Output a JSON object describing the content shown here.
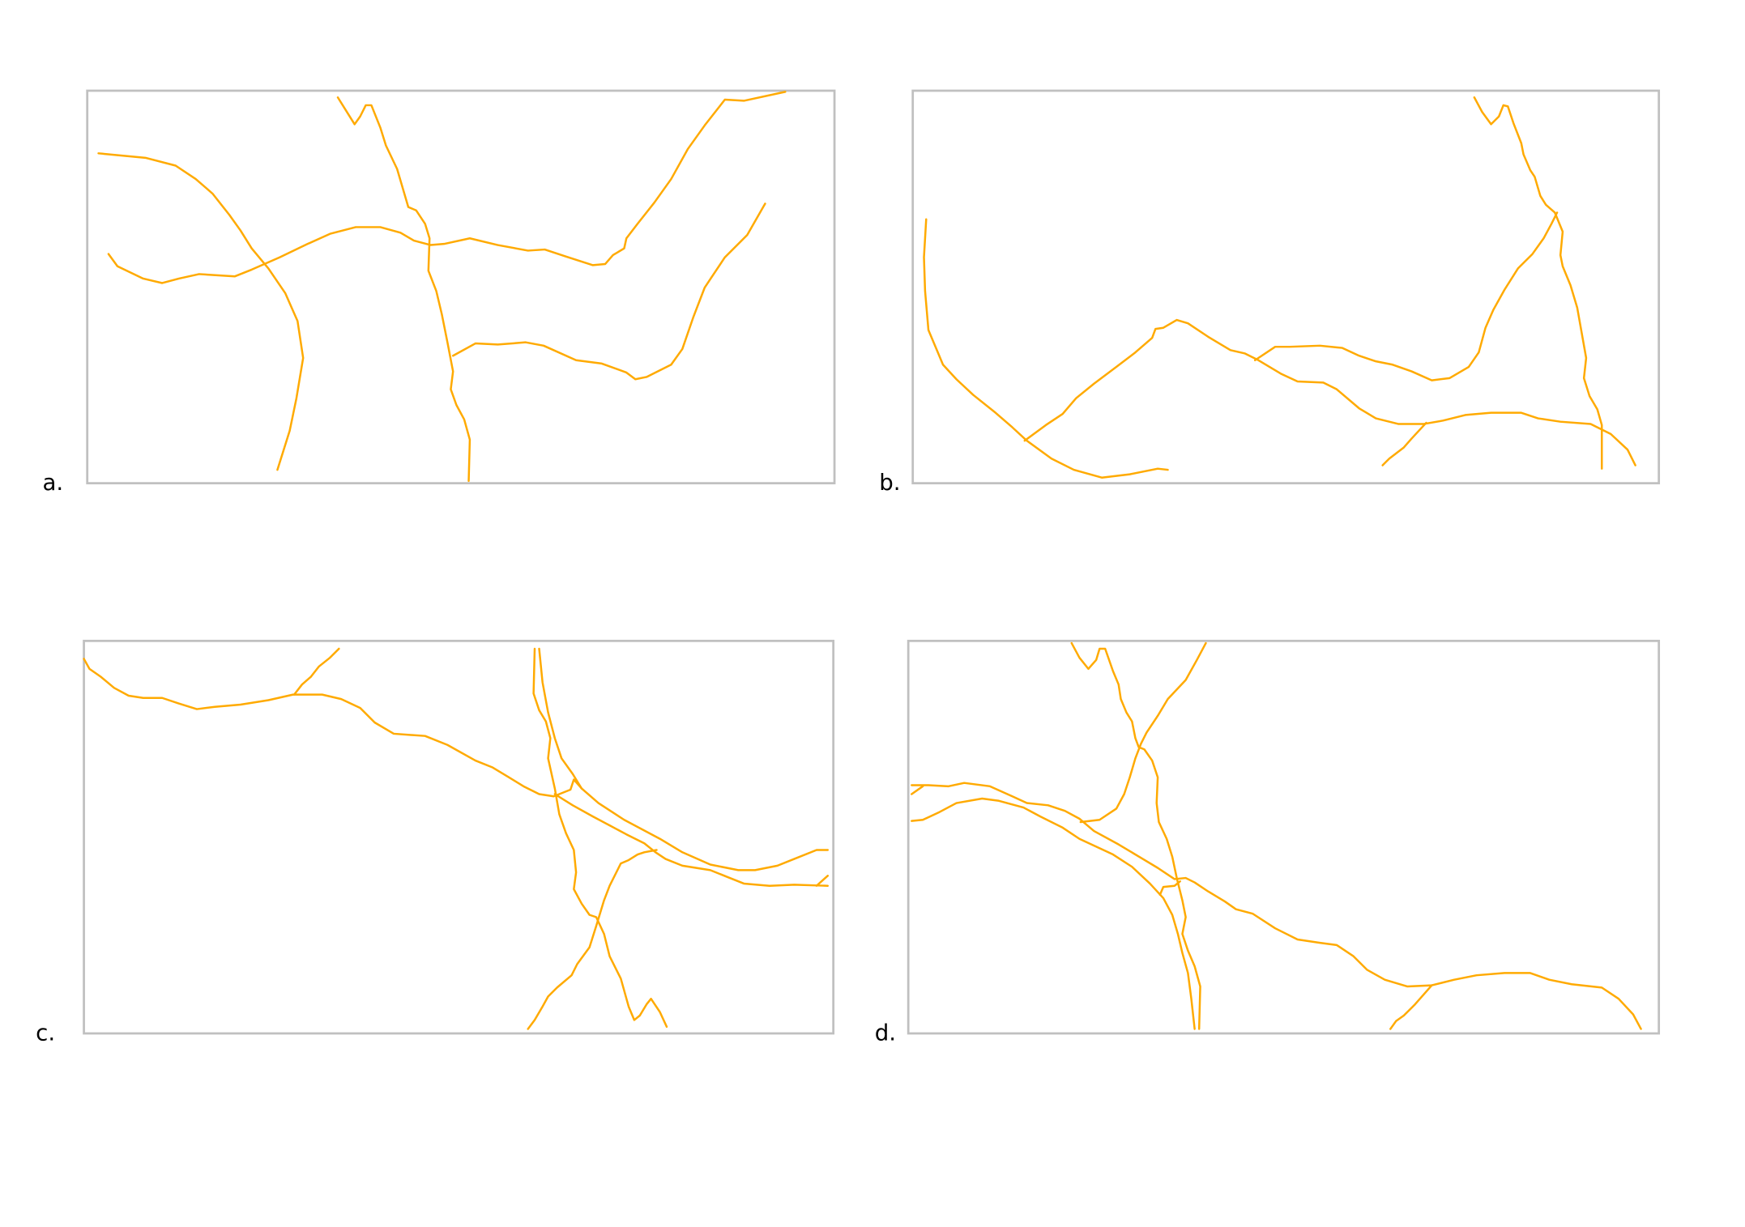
{
  "colors": {
    "road": "#FFAA00",
    "frame": "#C0C0C0"
  },
  "panels": [
    {
      "label": "a."
    },
    {
      "label": "b."
    },
    {
      "label": "c."
    },
    {
      "label": "d."
    }
  ]
}
